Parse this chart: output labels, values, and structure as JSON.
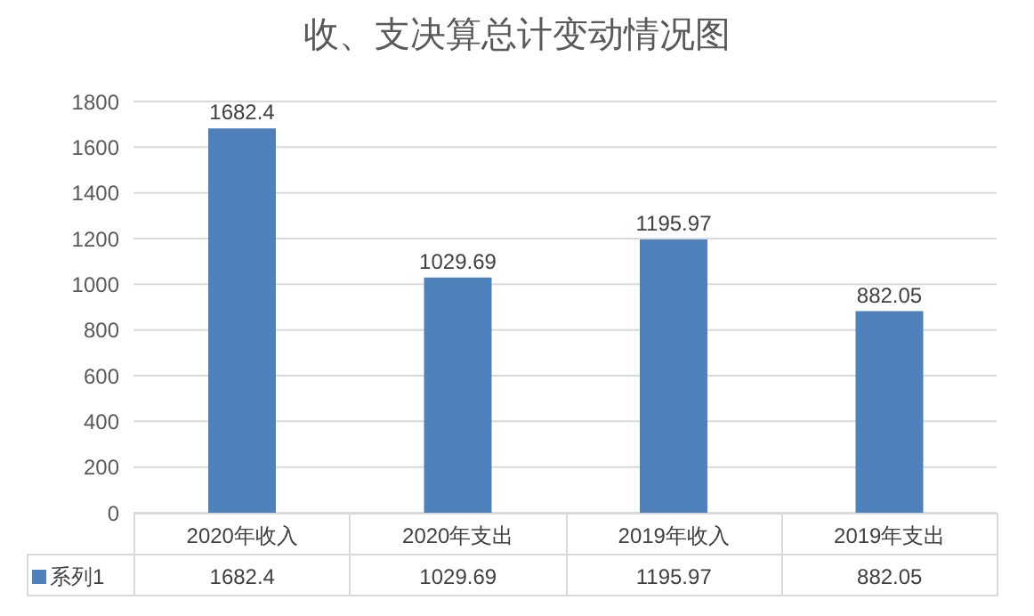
{
  "chart_data": {
    "type": "bar",
    "title": "收、支决算总计变动情况图",
    "categories": [
      "2020年收入",
      "2020年支出",
      "2019年收入",
      "2019年支出"
    ],
    "series": [
      {
        "name": "系列1",
        "color": "#4f81bd",
        "values": [
          1682.4,
          1029.69,
          1195.97,
          882.05
        ],
        "value_labels": [
          "1682.4",
          "1029.69",
          "1195.97",
          "882.05"
        ]
      }
    ],
    "ylim": [
      0,
      1800
    ],
    "yticks": [
      0,
      200,
      400,
      600,
      800,
      1000,
      1200,
      1400,
      1600,
      1800
    ],
    "annotations": [
      "1682.4",
      "1029.69",
      "1195.97",
      "882.05"
    ],
    "grid": "y",
    "legend": "bottom"
  }
}
